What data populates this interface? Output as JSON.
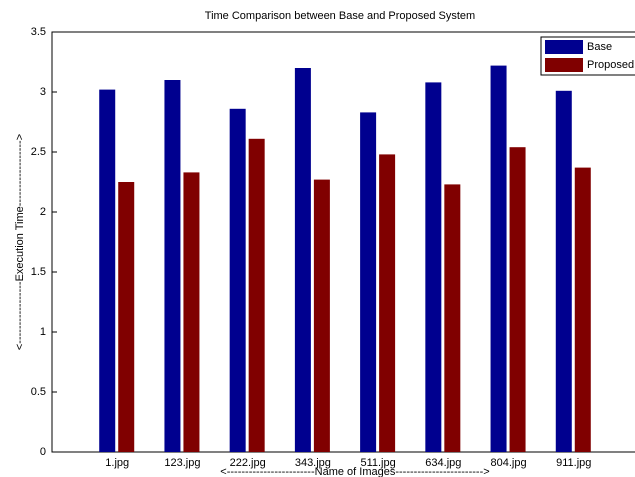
{
  "chart_data": {
    "type": "bar",
    "title": "Time Comparison between Base and Proposed System",
    "x_label": "<------------------------Name of Images------------------------>",
    "y_label": "<-----------------Execution Time------------------>",
    "categories": [
      "1.jpg",
      "123.jpg",
      "222.jpg",
      "343.jpg",
      "511.jpg",
      "634.jpg",
      "804.jpg",
      "911.jpg"
    ],
    "series": [
      {
        "name": "Base",
        "color": "#00008f",
        "values": [
          3.02,
          3.1,
          2.86,
          3.2,
          2.83,
          3.08,
          3.22,
          3.01
        ]
      },
      {
        "name": "Proposed",
        "color": "#800000",
        "values": [
          2.25,
          2.33,
          2.61,
          2.27,
          2.48,
          2.23,
          2.54,
          2.37
        ]
      }
    ],
    "ylim": [
      0,
      3.5
    ],
    "yticks": [
      0,
      0.5,
      1,
      1.5,
      2,
      2.5,
      3,
      3.5
    ],
    "legend": "upper right"
  }
}
